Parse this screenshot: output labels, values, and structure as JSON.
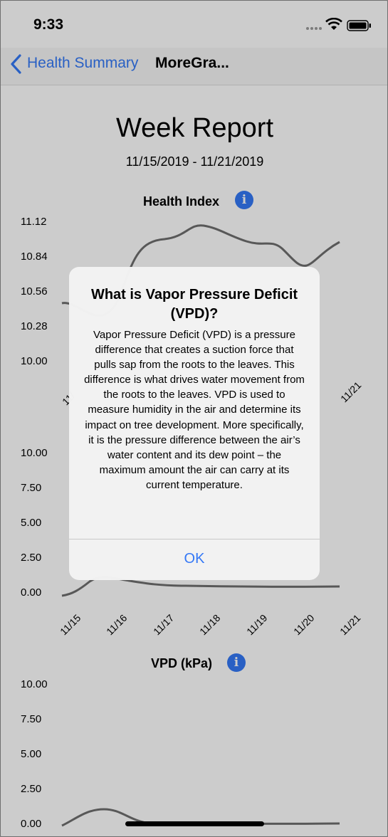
{
  "status_bar": {
    "time": "9:33",
    "icons": [
      "cellular-signal-icon",
      "wifi-icon",
      "battery-icon"
    ]
  },
  "nav": {
    "back_label": "Health Summary",
    "title": "MoreGra...",
    "back_icon": "chevron-left-icon"
  },
  "report": {
    "title": "Week Report",
    "date_range": "11/15/2019 - 11/21/2019"
  },
  "charts": [
    {
      "title": "Health Index",
      "y_ticks": [
        "11.12",
        "10.84",
        "10.56",
        "10.28",
        "10.00"
      ],
      "x_ticks": [
        "11/",
        "11/21"
      ]
    },
    {
      "title": "",
      "y_ticks": [
        "10.00",
        "7.50",
        "5.00",
        "2.50",
        "0.00"
      ],
      "x_ticks": [
        "11/15",
        "11/16",
        "11/17",
        "11/18",
        "11/19",
        "11/20",
        "11/21"
      ]
    },
    {
      "title": "VPD (kPa)",
      "y_ticks": [
        "10.00",
        "7.50",
        "5.00",
        "2.50",
        "0.00"
      ]
    }
  ],
  "alert": {
    "title": "What is Vapor Pressure Deficit (VPD)?",
    "message": "Vapor Pressure Deficit (VPD) is a pressure difference that creates a suction force that pulls sap from the roots to the leaves. This difference is what drives water movement from the roots to the leaves. VPD is used to measure humidity in the air and determine its impact on tree development. More specifically, it is the pressure difference between the air’s water content and its dew point – the maximum amount the air can carry at its current temperature.",
    "ok_label": "OK"
  },
  "colors": {
    "accent": "#3478f6",
    "curve": "#6e6e6e",
    "dim": "rgba(0,0,0,0.2)"
  }
}
